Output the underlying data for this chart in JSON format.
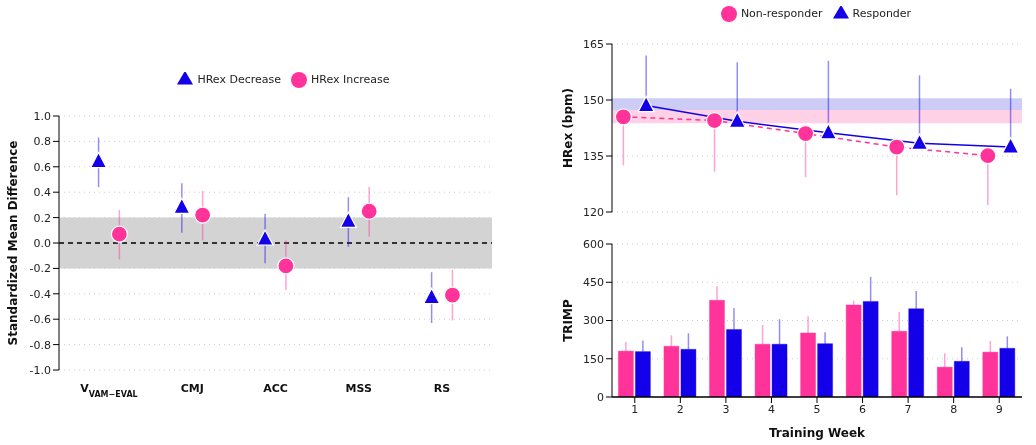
{
  "chart_data": [
    {
      "type": "scatter",
      "ylabel": "Standardized Mean Difference",
      "categories": [
        "V$_{VAM−EVAL}$",
        "CMJ",
        "ACC",
        "MSS",
        "RS"
      ],
      "series": [
        {
          "name": "HRex Decrease",
          "color": "#1400e8",
          "marker": "triangle",
          "values": [
            0.64,
            0.28,
            0.03,
            0.17,
            -0.43
          ],
          "errors": [
            [
              0.44,
              0.83
            ],
            [
              0.08,
              0.47
            ],
            [
              -0.16,
              0.23
            ],
            [
              -0.03,
              0.36
            ],
            [
              -0.63,
              -0.23
            ]
          ]
        },
        {
          "name": "HRex Increase",
          "color": "#ff3399",
          "marker": "circle",
          "values": [
            0.07,
            0.22,
            -0.18,
            0.25,
            -0.41
          ],
          "errors": [
            [
              -0.13,
              0.26
            ],
            [
              0.02,
              0.41
            ],
            [
              -0.37,
              0.02
            ],
            [
              0.05,
              0.44
            ],
            [
              -0.61,
              -0.21
            ]
          ]
        }
      ],
      "ylim": [
        -1,
        1
      ],
      "yticks": [
        {
          "value": -1,
          "label": "-1.0"
        },
        {
          "value": -0.8,
          "label": "-0.8"
        },
        {
          "value": -0.6,
          "label": "-0.6"
        },
        {
          "value": -0.4,
          "label": "-0.4"
        },
        {
          "value": -0.2,
          "label": "-0.2"
        },
        {
          "value": 0,
          "label": "0.0"
        },
        {
          "value": 0.2,
          "label": "0.2"
        },
        {
          "value": 0.4,
          "label": "0.4"
        },
        {
          "value": 0.6,
          "label": "0.6"
        },
        {
          "value": 0.8,
          "label": "0.8"
        },
        {
          "value": 1,
          "label": "1.0"
        }
      ],
      "grid": "y",
      "legend": "top",
      "bands": [
        {
          "axis": "y",
          "from": -0.2,
          "to": 0.2,
          "color": "#d3d3d3"
        }
      ],
      "ref_lines": [
        {
          "axis": "y",
          "value": 0,
          "color": "#000000",
          "line_style": "dashed"
        }
      ]
    },
    {
      "type": "line",
      "ylabel": "HRex (bpm)",
      "categories": [
        null,
        null,
        null,
        null,
        null
      ],
      "tick_labels": "y",
      "series": [
        {
          "name": "Non-responder",
          "color": "#ff3399",
          "marker": "circle",
          "line_style": "dashed",
          "values": [
            145.5,
            144.5,
            141.0,
            137.4,
            135.1
          ],
          "errors": [
            [
              132.5,
              145.5
            ],
            [
              130.8,
              144.5
            ],
            [
              129.3,
              141.0
            ],
            [
              124.5,
              137.4
            ],
            [
              121.9,
              135.1
            ]
          ]
        },
        {
          "name": "Responder",
          "color": "#1400e8",
          "marker": "triangle",
          "line_style": "solid",
          "values": [
            148.5,
            144.3,
            141.2,
            138.4,
            137.4
          ],
          "errors": [
            [
              148.5,
              161.9
            ],
            [
              144.3,
              160.1
            ],
            [
              141.2,
              160.5
            ],
            [
              138.4,
              156.6
            ],
            [
              137.4,
              153.0
            ]
          ]
        }
      ],
      "ylim": [
        120,
        165
      ],
      "yticks": [
        120,
        135,
        150,
        165
      ],
      "grid": "y",
      "legend": "top",
      "bands": [
        {
          "axis": "y",
          "from": 143.8,
          "to": 147.3,
          "color": "#ffd1e6"
        },
        {
          "axis": "y",
          "from": 147.3,
          "to": 150.5,
          "color": "#ccccf7"
        }
      ]
    },
    {
      "type": "bar",
      "xlabel": "Training Week",
      "ylabel": "TRIMP",
      "categories": [
        "1",
        "2",
        "3",
        "4",
        "5",
        "6",
        "7",
        "8",
        "9"
      ],
      "series": [
        {
          "color": "#ff3399",
          "values": [
            180,
            199,
            379,
            207,
            251,
            361,
            258,
            117,
            176
          ],
          "errors": [
            [
              180,
              216
            ],
            [
              199,
              242
            ],
            [
              379,
              434
            ],
            [
              207,
              282
            ],
            [
              251,
              317
            ],
            [
              361,
              378
            ],
            [
              258,
              333
            ],
            [
              117,
              172
            ],
            [
              176,
              220
            ]
          ]
        },
        {
          "color": "#1400e8",
          "values": [
            178,
            187,
            265,
            207,
            209,
            375,
            346,
            140,
            191
          ],
          "errors": [
            [
              178,
              222
            ],
            [
              187,
              250
            ],
            [
              265,
              349
            ],
            [
              207,
              305
            ],
            [
              209,
              254
            ],
            [
              375,
              471
            ],
            [
              346,
              416
            ],
            [
              140,
              195
            ],
            [
              191,
              238
            ]
          ]
        }
      ],
      "ylim": [
        0,
        600
      ],
      "yticks": [
        0,
        150,
        300,
        450,
        600
      ],
      "grid": "y"
    }
  ]
}
